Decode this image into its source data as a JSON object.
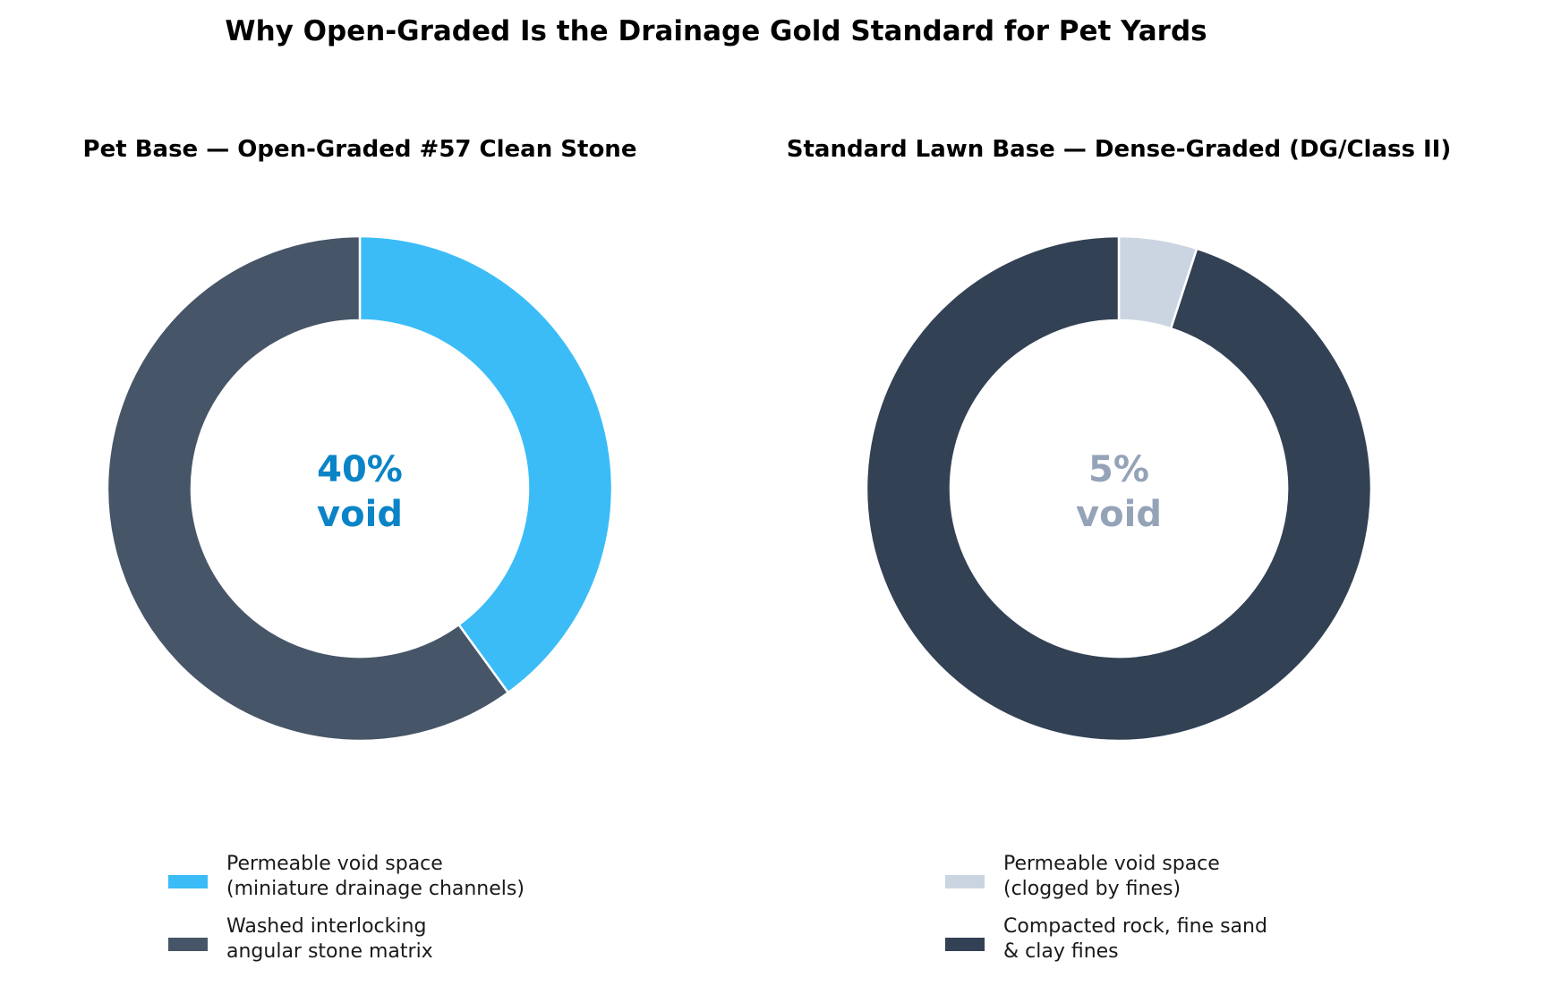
{
  "title": "Why Open-Graded Is the Drainage Gold Standard for Pet Yards",
  "chart_data": [
    {
      "type": "pie",
      "donut": true,
      "title": "Pet Base — Open-Graded #57 Clean Stone",
      "center_label": [
        "40%",
        "void"
      ],
      "center_color": "#0a84c7",
      "slices": [
        {
          "label": "Permeable void space\n(miniature drainage channels)",
          "value": 40,
          "color": "#3bbcf7"
        },
        {
          "label": "Washed interlocking\nangular stone matrix",
          "value": 60,
          "color": "#465567"
        }
      ],
      "legend_position": "bottom"
    },
    {
      "type": "pie",
      "donut": true,
      "title": "Standard Lawn Base — Dense-Graded (DG/Class II)",
      "center_label": [
        "5%",
        "void"
      ],
      "center_color": "#94a3b8",
      "slices": [
        {
          "label": "Permeable void space\n(clogged by fines)",
          "value": 5,
          "color": "#cbd5e1"
        },
        {
          "label": "Compacted rock, fine sand\n& clay fines",
          "value": 95,
          "color": "#334155"
        }
      ],
      "legend_position": "bottom"
    }
  ]
}
